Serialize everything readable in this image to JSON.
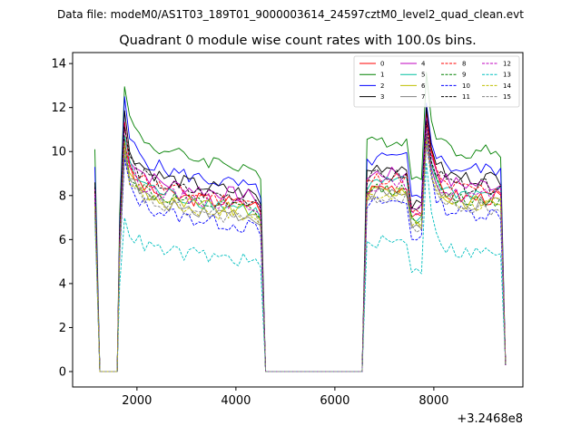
{
  "figure": {
    "suptitle": "Data file: modeM0/AS1T03_189T01_9000003614_24597cztM0_level2_quad_clean.evt"
  },
  "chart_data": {
    "type": "line",
    "title": "Quadrant 0 module wise count rates with 100.0s bins.",
    "xlabel": "",
    "ylabel": "",
    "x_offset_label": "+3.2468e8",
    "xlim": [
      700,
      9800
    ],
    "ylim": [
      -0.7,
      14.5
    ],
    "xticks": [
      2000,
      4000,
      6000,
      8000
    ],
    "xtick_labels": [
      "2000",
      "4000",
      "6000",
      "8000"
    ],
    "yticks": [
      0,
      2,
      4,
      6,
      8,
      10,
      12,
      14
    ],
    "ytick_labels": [
      "0",
      "2",
      "4",
      "6",
      "8",
      "10",
      "12",
      "14"
    ],
    "legend_position": "upper right",
    "legend_columns": 4,
    "segments": [
      {
        "x_start": 1150,
        "x_end": 4500,
        "start": [
          8.3,
          0.0,
          0.0,
          0.0
        ],
        "peak_x": 1750,
        "decay_tau": 300
      },
      {
        "x_start": 6550,
        "x_end": 9450,
        "start": [
          0.0
        ],
        "peak_x": 7850,
        "decay_tau": 150
      }
    ],
    "gap_value": 0,
    "bin_width": 100,
    "series": [
      {
        "name": "0",
        "color": "#ff0000",
        "style": "solid",
        "level": 8.1,
        "dip": 7.6,
        "spike": 11.8,
        "edge_left": 8.3,
        "edge_right": 0.3
      },
      {
        "name": "1",
        "color": "#008000",
        "style": "solid",
        "level": 10.2,
        "dip": 9.2,
        "spike": 13.6,
        "edge_left": 10.1,
        "edge_right": 0.3
      },
      {
        "name": "2",
        "color": "#0000ff",
        "style": "solid",
        "level": 9.4,
        "dip": 8.3,
        "spike": 12.2,
        "edge_left": 9.3,
        "edge_right": 0.3
      },
      {
        "name": "3",
        "color": "#000000",
        "style": "solid",
        "level": 9.0,
        "dip": 8.0,
        "spike": 12.0,
        "edge_left": 8.6,
        "edge_right": 0.3
      },
      {
        "name": "4",
        "color": "#bf00bf",
        "style": "solid",
        "level": 8.7,
        "dip": 7.9,
        "spike": 11.5,
        "edge_left": 8.4,
        "edge_right": 0.3
      },
      {
        "name": "5",
        "color": "#00bf9f",
        "style": "solid",
        "level": 8.3,
        "dip": 7.3,
        "spike": 10.9,
        "edge_left": 8.0,
        "edge_right": 0.3
      },
      {
        "name": "6",
        "color": "#bfbf00",
        "style": "solid",
        "level": 7.9,
        "dip": 7.2,
        "spike": 10.8,
        "edge_left": 7.8,
        "edge_right": 0.3
      },
      {
        "name": "7",
        "color": "#808080",
        "style": "solid",
        "level": 7.8,
        "dip": 7.0,
        "spike": 10.7,
        "edge_left": 7.6,
        "edge_right": 0.3
      },
      {
        "name": "8",
        "color": "#ff0000",
        "style": "dashed",
        "level": 8.5,
        "dip": 7.6,
        "spike": 11.3,
        "edge_left": 8.2,
        "edge_right": 0.3
      },
      {
        "name": "9",
        "color": "#008000",
        "style": "dashed",
        "level": 8.0,
        "dip": 7.3,
        "spike": 10.9,
        "edge_left": 7.9,
        "edge_right": 0.3
      },
      {
        "name": "10",
        "color": "#0000ff",
        "style": "dashed",
        "level": 7.4,
        "dip": 6.5,
        "spike": 10.4,
        "edge_left": 7.3,
        "edge_right": 0.3
      },
      {
        "name": "11",
        "color": "#000000",
        "style": "dashed",
        "level": 8.6,
        "dip": 7.8,
        "spike": 11.4,
        "edge_left": 8.4,
        "edge_right": 0.3
      },
      {
        "name": "12",
        "color": "#bf00bf",
        "style": "dashed",
        "level": 8.2,
        "dip": 7.5,
        "spike": 11.0,
        "edge_left": 8.0,
        "edge_right": 0.3
      },
      {
        "name": "13",
        "color": "#00bfbf",
        "style": "dashed",
        "level": 5.6,
        "dip": 5.0,
        "spike": 9.5,
        "edge_left": 7.0,
        "edge_right": 0.3
      },
      {
        "name": "14",
        "color": "#bfbf00",
        "style": "dashed",
        "level": 7.8,
        "dip": 7.0,
        "spike": 10.5,
        "edge_left": 7.5,
        "edge_right": 0.3
      },
      {
        "name": "15",
        "color": "#808080",
        "style": "dashed",
        "level": 7.6,
        "dip": 6.9,
        "spike": 10.3,
        "edge_left": 7.4,
        "edge_right": 0.3
      }
    ]
  }
}
